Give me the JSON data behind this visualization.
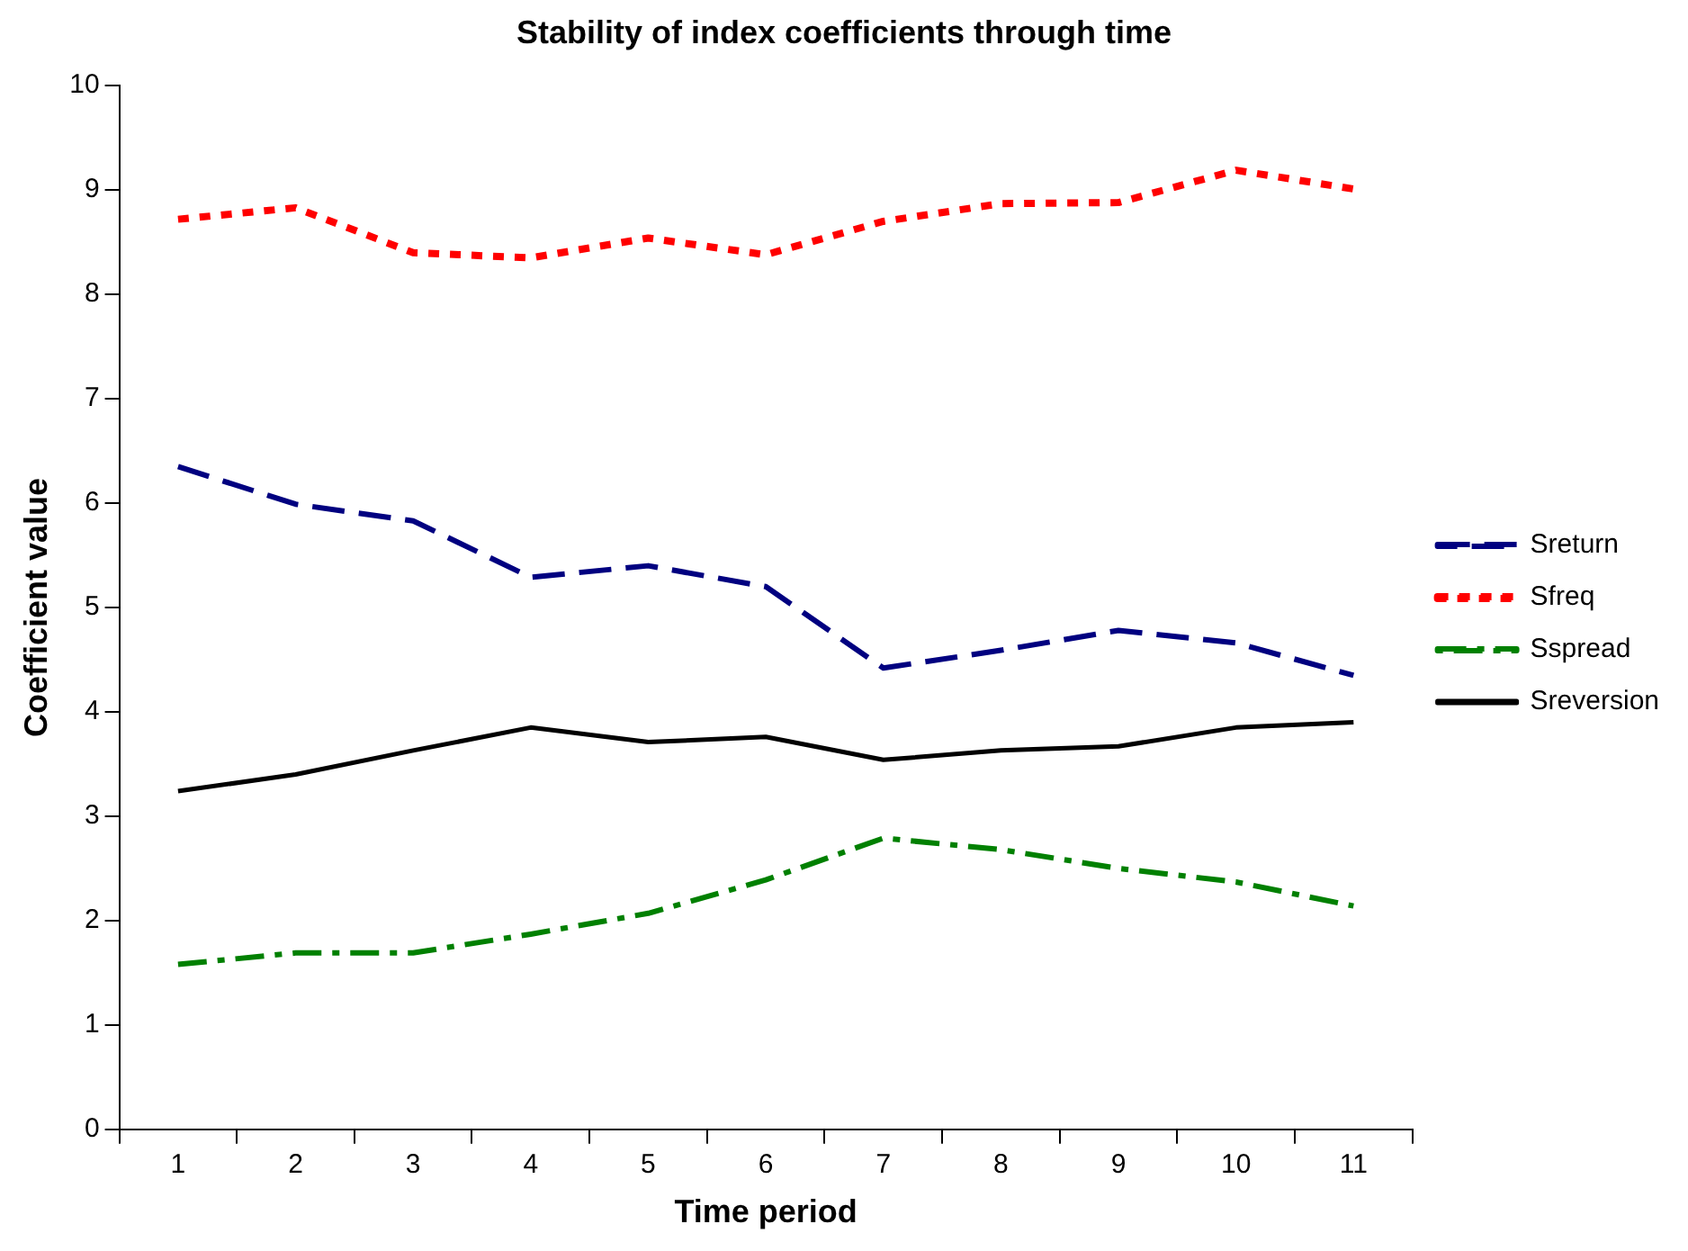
{
  "chart_data": {
    "type": "line",
    "title": "Stability of index coefficients through time",
    "xlabel": "Time period",
    "ylabel": "Coefficient value",
    "categories": [
      "1",
      "2",
      "3",
      "4",
      "5",
      "6",
      "7",
      "8",
      "9",
      "10",
      "11"
    ],
    "series": [
      {
        "name": "Sreturn",
        "color": "#000080",
        "line_style": "dashed",
        "values": [
          6.35,
          5.99,
          5.83,
          5.29,
          5.4,
          5.2,
          4.42,
          4.59,
          4.78,
          4.66,
          4.35
        ]
      },
      {
        "name": "Sfreq",
        "color": "#ff0000",
        "line_style": "dotted",
        "values": [
          8.72,
          8.83,
          8.4,
          8.35,
          8.54,
          8.38,
          8.7,
          8.87,
          8.88,
          9.19,
          9.01
        ]
      },
      {
        "name": "Sspread",
        "color": "#008000",
        "line_style": "dashdot",
        "values": [
          1.58,
          1.69,
          1.69,
          1.87,
          2.07,
          2.39,
          2.79,
          2.68,
          2.5,
          2.37,
          2.14
        ]
      },
      {
        "name": "Sreversion",
        "color": "#000000",
        "line_style": "solid",
        "values": [
          3.24,
          3.4,
          3.63,
          3.85,
          3.71,
          3.76,
          3.54,
          3.63,
          3.67,
          3.85,
          3.9
        ]
      }
    ],
    "ylim": [
      0,
      10
    ],
    "yticks": [
      0,
      1,
      2,
      3,
      4,
      5,
      6,
      7,
      8,
      9,
      10
    ],
    "grid": false,
    "legend": "right",
    "marker": "none"
  }
}
